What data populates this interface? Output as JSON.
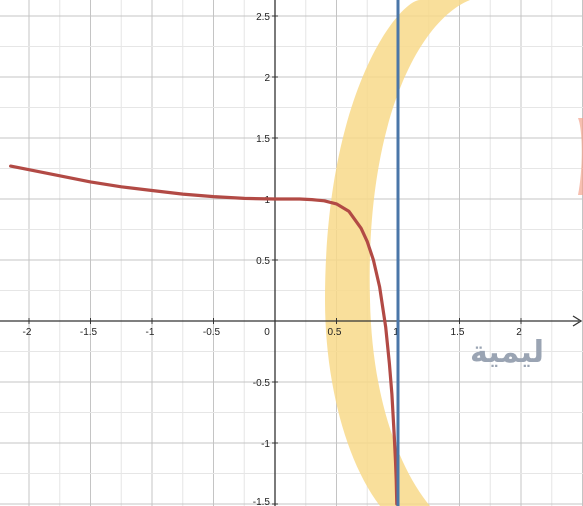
{
  "chart_data": {
    "type": "line",
    "title": "",
    "xlabel": "",
    "ylabel": "",
    "xlim": [
      -2.15,
      2.5
    ],
    "ylim": [
      -1.5,
      2.5
    ],
    "grid": true,
    "x_ticks": [
      -2,
      -1.5,
      -1,
      -0.5,
      0,
      0.5,
      1,
      1.5,
      2
    ],
    "x_tick_labels": [
      "-2",
      "-1.5",
      "-1",
      "-0.5",
      "0",
      "0.5",
      "1",
      "1.5",
      "2"
    ],
    "y_ticks": [
      -1.5,
      -1,
      -0.5,
      0.5,
      1,
      1.5,
      2,
      2.5
    ],
    "y_tick_labels": [
      "-1.5",
      "-1",
      "-0.5",
      "0.5",
      "1",
      "1.5",
      "2",
      "2.5"
    ],
    "series": [
      {
        "kind": "curve",
        "color": "#b24a45",
        "x": [
          -2.15,
          -2.0,
          -1.75,
          -1.5,
          -1.25,
          -1.0,
          -0.75,
          -0.5,
          -0.25,
          0.0,
          0.2,
          0.3,
          0.4,
          0.5,
          0.6,
          0.7,
          0.75,
          0.8,
          0.85,
          0.9,
          0.93,
          0.95,
          0.97,
          0.98,
          0.985,
          0.99
        ],
        "y": [
          1.27,
          1.24,
          1.19,
          1.14,
          1.1,
          1.07,
          1.04,
          1.02,
          1.005,
          1.0,
          1.0,
          0.995,
          0.985,
          0.96,
          0.9,
          0.76,
          0.65,
          0.5,
          0.28,
          -0.05,
          -0.35,
          -0.6,
          -0.95,
          -1.15,
          -1.3,
          -1.5
        ]
      },
      {
        "kind": "vertical-asymptote",
        "color": "#4a76a8",
        "x": 1
      }
    ]
  },
  "watermark": {
    "text": "ليمية",
    "ring_color": "#f8d98a",
    "text_color": "#9aa4b3"
  }
}
